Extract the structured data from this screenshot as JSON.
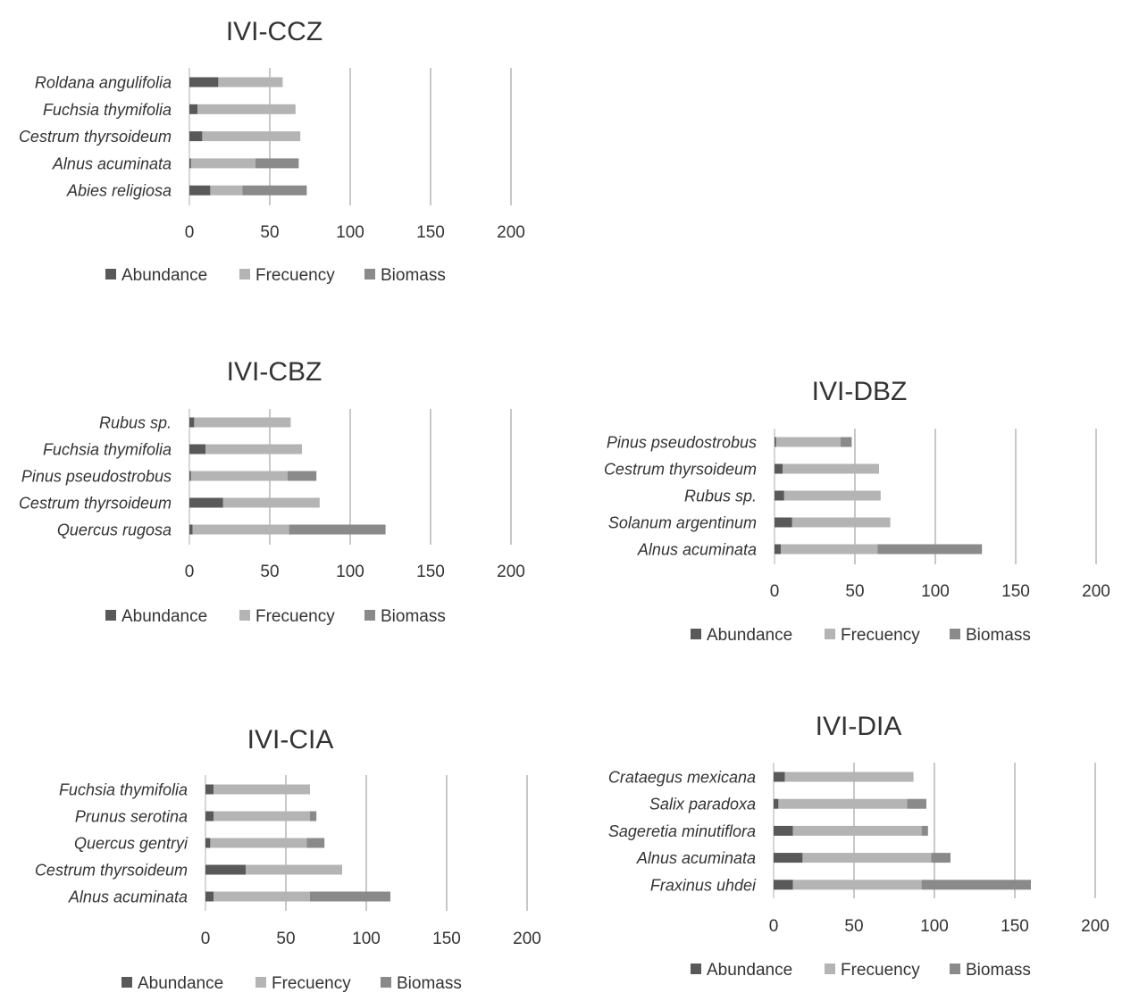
{
  "colors": {
    "abundance": "#595959",
    "frecuency": "#b4b4b4",
    "biomass": "#8a8a8a"
  },
  "chart_data": [
    {
      "id": "ccz",
      "type": "bar",
      "orientation": "horizontal",
      "stacked": true,
      "title": "IVI-CCZ",
      "categories": [
        "Roldana angulifolia",
        "Fuchsia thymifolia",
        "Cestrum thyrsoideum",
        "Alnus acuminata",
        "Abies religiosa"
      ],
      "series": [
        {
          "name": "Abundance",
          "values": [
            18,
            5,
            8,
            1,
            13
          ]
        },
        {
          "name": "Frecuency",
          "values": [
            40,
            61,
            61,
            40,
            20
          ]
        },
        {
          "name": "Biomass",
          "values": [
            0,
            0,
            0,
            27,
            40
          ]
        }
      ],
      "xlim": [
        0,
        200
      ],
      "xticks": [
        0,
        50,
        100,
        150,
        200
      ],
      "grid": true,
      "legend": "bottom"
    },
    {
      "id": "cbz",
      "type": "bar",
      "orientation": "horizontal",
      "stacked": true,
      "title": "IVI-CBZ",
      "categories": [
        "Rubus sp.",
        "Fuchsia thymifolia",
        "Pinus pseudostrobus",
        "Cestrum thyrsoideum",
        "Quercus rugosa"
      ],
      "series": [
        {
          "name": "Abundance",
          "values": [
            3,
            10,
            1,
            21,
            2
          ]
        },
        {
          "name": "Frecuency",
          "values": [
            60,
            60,
            60,
            60,
            60
          ]
        },
        {
          "name": "Biomass",
          "values": [
            0,
            0,
            18,
            0,
            60
          ]
        }
      ],
      "xlim": [
        0,
        200
      ],
      "xticks": [
        0,
        50,
        100,
        150,
        200
      ],
      "grid": true,
      "legend": "bottom"
    },
    {
      "id": "dbz",
      "type": "bar",
      "orientation": "horizontal",
      "stacked": true,
      "title": "IVI-DBZ",
      "categories": [
        "Pinus pseudostrobus",
        "Cestrum thyrsoideum",
        "Rubus sp.",
        "Solanum argentinum",
        "Alnus acuminata"
      ],
      "series": [
        {
          "name": "Abundance",
          "values": [
            1,
            5,
            6,
            11,
            4
          ]
        },
        {
          "name": "Frecuency",
          "values": [
            40,
            60,
            60,
            61,
            60
          ]
        },
        {
          "name": "Biomass",
          "values": [
            7,
            0,
            0,
            0,
            65
          ]
        }
      ],
      "xlim": [
        0,
        200
      ],
      "xticks": [
        0,
        50,
        100,
        150,
        200
      ],
      "grid": true,
      "legend": "bottom"
    },
    {
      "id": "cia",
      "type": "bar",
      "orientation": "horizontal",
      "stacked": true,
      "title": "IVI-CIA",
      "categories": [
        "Fuchsia thymifolia",
        "Prunus serotina",
        "Quercus gentryi",
        "Cestrum thyrsoideum",
        "Alnus acuminata"
      ],
      "series": [
        {
          "name": "Abundance",
          "values": [
            5,
            5,
            3,
            25,
            5
          ]
        },
        {
          "name": "Frecuency",
          "values": [
            60,
            60,
            60,
            60,
            60
          ]
        },
        {
          "name": "Biomass",
          "values": [
            0,
            4,
            11,
            0,
            50
          ]
        }
      ],
      "xlim": [
        0,
        200
      ],
      "xticks": [
        0,
        50,
        100,
        150,
        200
      ],
      "grid": true,
      "legend": "bottom"
    },
    {
      "id": "dia",
      "type": "bar",
      "orientation": "horizontal",
      "stacked": true,
      "title": "IVI-DIA",
      "categories": [
        "Crataegus mexicana",
        "Salix paradoxa",
        "Sageretia minutiflora",
        "Alnus acuminata",
        "Fraxinus uhdei"
      ],
      "series": [
        {
          "name": "Abundance",
          "values": [
            7,
            3,
            12,
            18,
            12
          ]
        },
        {
          "name": "Frecuency",
          "values": [
            80,
            80,
            80,
            80,
            80
          ]
        },
        {
          "name": "Biomass",
          "values": [
            0,
            12,
            4,
            12,
            68
          ]
        }
      ],
      "xlim": [
        0,
        200
      ],
      "xticks": [
        0,
        50,
        100,
        150,
        200
      ],
      "grid": true,
      "legend": "bottom"
    }
  ]
}
